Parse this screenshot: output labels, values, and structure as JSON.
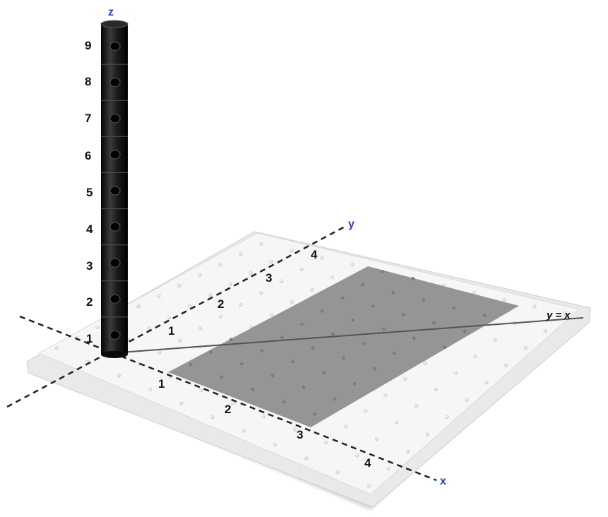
{
  "axes": {
    "x_label": "x",
    "y_label": "y",
    "z_label": "z",
    "x_ticks": [
      "1",
      "2",
      "3",
      "4"
    ],
    "y_ticks": [
      "1",
      "2",
      "3",
      "4"
    ],
    "z_ticks": [
      "1",
      "2",
      "3",
      "4",
      "5",
      "6",
      "7",
      "8",
      "9"
    ]
  },
  "line": {
    "label": "y = x"
  },
  "colors": {
    "axis_label": "#2b3fbf",
    "shaded_region": "#8f8f8f",
    "tower": "#1a1a1a",
    "board": "#f4f4f4"
  }
}
